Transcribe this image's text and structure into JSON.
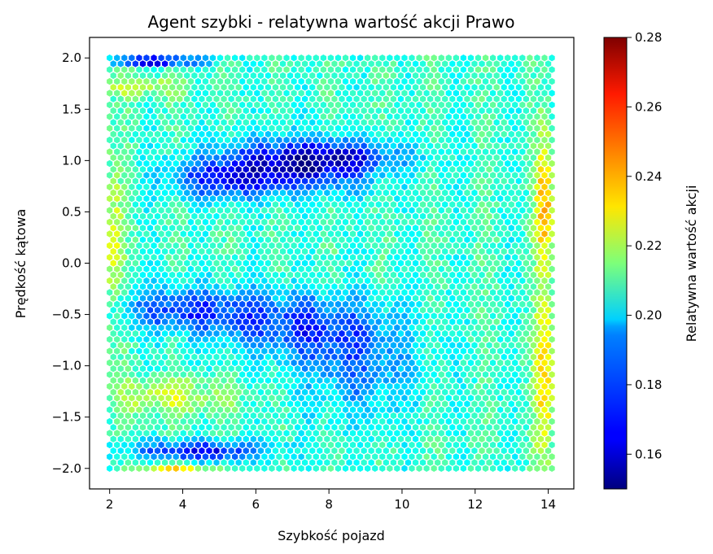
{
  "chart_data": {
    "type": "heatmap",
    "subtype": "hexbin",
    "title": "Agent szybki - relatywna wartość akcji Prawo",
    "xlabel": "Szybkość pojazd",
    "ylabel": "Prędkość kątowa",
    "xlim": [
      1.45,
      14.7
    ],
    "ylim": [
      -2.2,
      2.2
    ],
    "xticks": [
      2,
      4,
      6,
      8,
      10,
      12,
      14
    ],
    "xtick_labels": [
      "2",
      "4",
      "6",
      "8",
      "10",
      "12",
      "14"
    ],
    "yticks": [
      -2.0,
      -1.5,
      -1.0,
      -0.5,
      0.0,
      0.5,
      1.0,
      1.5,
      2.0
    ],
    "ytick_labels": [
      "−2.0",
      "−1.5",
      "−1.0",
      "−0.5",
      "0.0",
      "0.5",
      "1.0",
      "1.5",
      "2.0"
    ],
    "x_range": [
      2.0,
      14.1
    ],
    "y_range": [
      -2.0,
      2.0
    ],
    "grid": false,
    "colormap": "jet",
    "colorbar": {
      "label": "Relatywna wartość akcji",
      "min": 0.15,
      "max": 0.28,
      "ticks": [
        0.16,
        0.18,
        0.2,
        0.22,
        0.24,
        0.26,
        0.28
      ],
      "tick_labels": [
        "0.16",
        "0.18",
        "0.20",
        "0.22",
        "0.24",
        "0.26",
        "0.28"
      ]
    },
    "base_value": 0.205,
    "features": [
      {
        "x": 7.0,
        "y": 0.95,
        "sx": 1.6,
        "sy": 0.18,
        "amp": -0.045,
        "desc": "low-value blob"
      },
      {
        "x": 5.0,
        "y": 0.8,
        "sx": 1.0,
        "sy": 0.12,
        "amp": -0.025,
        "desc": "low-value blob"
      },
      {
        "x": 8.5,
        "y": 1.05,
        "sx": 1.2,
        "sy": 0.1,
        "amp": -0.02,
        "desc": "low-value blob"
      },
      {
        "x": 4.0,
        "y": -0.45,
        "sx": 1.3,
        "sy": 0.15,
        "amp": -0.03,
        "desc": "low-value band"
      },
      {
        "x": 7.0,
        "y": -0.6,
        "sx": 1.5,
        "sy": 0.22,
        "amp": -0.028,
        "desc": "low-value band"
      },
      {
        "x": 8.8,
        "y": -1.0,
        "sx": 1.2,
        "sy": 0.35,
        "amp": -0.022,
        "desc": "low-value band"
      },
      {
        "x": 4.5,
        "y": -1.83,
        "sx": 1.3,
        "sy": 0.07,
        "amp": -0.04,
        "desc": "low-value strip"
      },
      {
        "x": 3.2,
        "y": 1.97,
        "sx": 0.9,
        "sy": 0.03,
        "amp": -0.055,
        "desc": "low-value edge"
      },
      {
        "x": 3.7,
        "y": -1.3,
        "sx": 1.2,
        "sy": 0.13,
        "amp": 0.02,
        "desc": "high-value band"
      },
      {
        "x": 2.9,
        "y": 1.72,
        "sx": 0.9,
        "sy": 0.08,
        "amp": 0.018,
        "desc": "high-value band"
      },
      {
        "x": 2.1,
        "y": 0.15,
        "sx": 0.2,
        "sy": 0.6,
        "amp": 0.02,
        "desc": "high-value edge"
      },
      {
        "x": 13.9,
        "y": 0.6,
        "sx": 0.18,
        "sy": 0.45,
        "amp": 0.035,
        "desc": "high-value edge"
      },
      {
        "x": 13.9,
        "y": -1.1,
        "sx": 0.2,
        "sy": 0.6,
        "amp": 0.03,
        "desc": "high-value edge"
      },
      {
        "x": 3.8,
        "y": -2.0,
        "sx": 0.6,
        "sy": 0.03,
        "amp": 0.035,
        "desc": "high-value edge"
      }
    ]
  }
}
